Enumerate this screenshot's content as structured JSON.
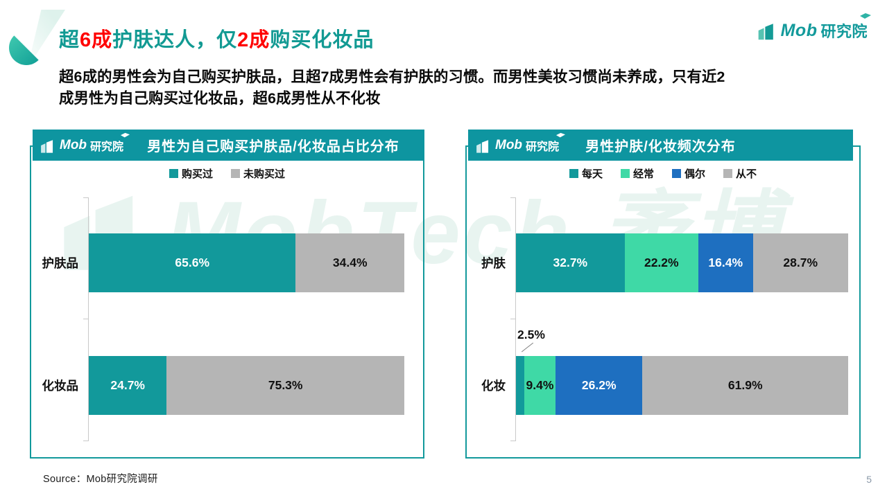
{
  "page": {
    "number": "5"
  },
  "header": {
    "title_segments": [
      {
        "text": "超",
        "color": "teal"
      },
      {
        "text": "6成",
        "color": "red"
      },
      {
        "text": "护肤达人，仅",
        "color": "teal"
      },
      {
        "text": "2成",
        "color": "red"
      },
      {
        "text": "购买化妆品",
        "color": "teal"
      }
    ],
    "subtitle_lines": [
      "超6成的男性会为自己购买护肤品，且超7成男性会有护肤的习惯。而男性美妆习惯尚未养成，只有近2",
      "成男性为自己购买过化妆品，超6成男性从不化妆"
    ]
  },
  "logo": {
    "mob": "Mob",
    "cn": "研究院"
  },
  "watermark": {
    "text": "MobTech 袤博"
  },
  "source": "Source：Mob研究院调研",
  "colors": {
    "brand_teal": "#12999B",
    "banner_teal": "#0E95A0",
    "accent_red": "#FF0000",
    "mint_green": "#3FD9A6",
    "blue": "#1E6FC0",
    "gray": "#B5B5B5"
  },
  "chart_data": [
    {
      "type": "bar",
      "orientation": "horizontal",
      "stacked": true,
      "title": "男性为自己购买护肤品/化妆品占比分布",
      "categories": [
        "护肤品",
        "化妆品"
      ],
      "series": [
        {
          "name": "购买过",
          "color": "#12999B",
          "label_color": "#FFFFFF",
          "values": [
            65.6,
            24.7
          ]
        },
        {
          "name": "未购买过",
          "color": "#B5B5B5",
          "label_color": "#111111",
          "values": [
            34.4,
            75.3
          ]
        }
      ],
      "value_suffix": "%",
      "xlim": [
        0,
        100
      ],
      "legend_position": "top",
      "grid": false
    },
    {
      "type": "bar",
      "orientation": "horizontal",
      "stacked": true,
      "title": "男性护肤/化妆频次分布",
      "categories": [
        "护肤",
        "化妆"
      ],
      "series": [
        {
          "name": "每天",
          "color": "#12999B",
          "label_color": "#FFFFFF",
          "values": [
            32.7,
            2.5
          ]
        },
        {
          "name": "经常",
          "color": "#3FD9A6",
          "label_color": "#111111",
          "values": [
            22.2,
            9.4
          ]
        },
        {
          "name": "偶尔",
          "color": "#1E6FC0",
          "label_color": "#FFFFFF",
          "values": [
            16.4,
            26.2
          ]
        },
        {
          "name": "从不",
          "color": "#B5B5B5",
          "label_color": "#111111",
          "values": [
            28.7,
            61.9
          ]
        }
      ],
      "value_suffix": "%",
      "xlim": [
        0,
        100
      ],
      "legend_position": "top",
      "grid": false
    }
  ]
}
